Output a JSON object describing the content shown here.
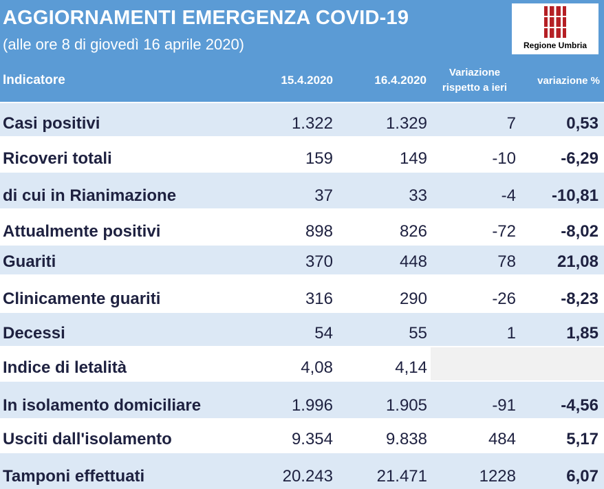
{
  "banner": {
    "title": "AGGIORNAMENTI EMERGENZA COVID-19",
    "subtitle": "(alle ore 8 di giovedì 16 aprile 2020)",
    "logo_text": "Regione Umbria",
    "logo_icon": "regione-umbria-emblem",
    "color": "#5b9bd5"
  },
  "table": {
    "headers": {
      "indicator": "Indicatore",
      "prev_date": "15.4.2020",
      "curr_date": "16.4.2020",
      "change_line1": "Variazione",
      "change_line2": "rispetto a ieri",
      "change_pct": "variazione %"
    },
    "rows": [
      {
        "label": "Casi positivi",
        "prev": "1.322",
        "curr": "1.329",
        "change": "7",
        "pct": "0,53"
      },
      {
        "label": "Ricoveri totali",
        "prev": "159",
        "curr": "149",
        "change": "-10",
        "pct": "-6,29"
      },
      {
        "label": "di cui in Rianimazione",
        "prev": "37",
        "curr": "33",
        "change": "-4",
        "pct": "-10,81"
      },
      {
        "label": "Attualmente positivi",
        "prev": "898",
        "curr": "826",
        "change": "-72",
        "pct": "-8,02"
      },
      {
        "label": "Guariti",
        "prev": "370",
        "curr": "448",
        "change": "78",
        "pct": "21,08"
      },
      {
        "label": "Clinicamente guariti",
        "prev": "316",
        "curr": "290",
        "change": "-26",
        "pct": "-8,23"
      },
      {
        "label": "Decessi",
        "prev": "54",
        "curr": "55",
        "change": "1",
        "pct": "1,85"
      },
      {
        "label": "Indice di letalità",
        "prev": "4,08",
        "curr": "4,14",
        "change": "",
        "pct": ""
      },
      {
        "label": "In isolamento domiciliare",
        "prev": "1.996",
        "curr": "1.905",
        "change": "-91",
        "pct": "-4,56"
      },
      {
        "label": "Usciti dall'isolamento",
        "prev": "9.354",
        "curr": "9.838",
        "change": "484",
        "pct": "5,17"
      },
      {
        "label": "Tamponi effettuati",
        "prev": "20.243",
        "curr": "21.471",
        "change": "1228",
        "pct": "6,07"
      }
    ]
  }
}
